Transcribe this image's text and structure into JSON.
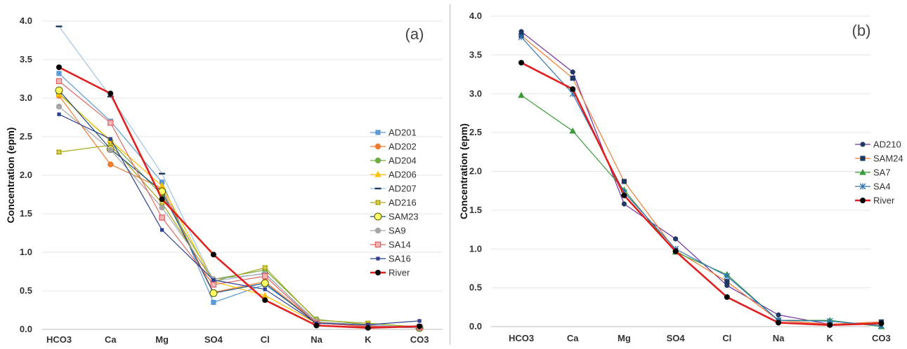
{
  "chart_data": [
    {
      "type": "line",
      "panel_label": "(a)",
      "ylabel": "Concentration (epm)",
      "categories": [
        "HCO3",
        "Ca",
        "Mg",
        "SO4",
        "Cl",
        "Na",
        "K",
        "CO3"
      ],
      "ylim": [
        0,
        4
      ],
      "yticks": [
        "0.0",
        "0.5",
        "1.0",
        "1.5",
        "2.0",
        "2.5",
        "3.0",
        "3.5",
        "4.0"
      ],
      "grid": true,
      "legend": "right",
      "series": [
        {
          "name": "AD201",
          "color": "#5b9bd5",
          "marker": "square",
          "values": [
            3.32,
            2.7,
            1.91,
            0.35,
            0.58,
            0.1,
            0.05,
            0.04
          ]
        },
        {
          "name": "AD202",
          "color": "#ed7d31",
          "marker": "circle",
          "values": [
            3.03,
            2.14,
            1.83,
            0.48,
            0.62,
            0.09,
            0.03,
            0.03
          ]
        },
        {
          "name": "AD204",
          "color": "#70ad47",
          "marker": "circle",
          "values": [
            3.06,
            2.44,
            1.74,
            0.65,
            0.77,
            0.13,
            0.06,
            0.02
          ]
        },
        {
          "name": "AD206",
          "color": "#ffc000",
          "marker": "triangle",
          "values": [
            3.05,
            2.45,
            1.86,
            0.62,
            0.44,
            0.08,
            0.06,
            0.03
          ]
        },
        {
          "name": "AD207",
          "color": "#9dc3e6",
          "marker": "dash",
          "values": [
            3.93,
            3.02,
            2.02,
            0.62,
            0.73,
            0.08,
            0.06,
            0.03
          ]
        },
        {
          "name": "AD216",
          "color": "#a5a515",
          "marker": "plus-square",
          "values": [
            2.3,
            2.39,
            1.64,
            0.62,
            0.8,
            0.12,
            0.08,
            0.03
          ]
        },
        {
          "name": "SAM23",
          "color": "#1f4e79",
          "marker": "circle-yellow",
          "values": [
            3.1,
            2.34,
            1.79,
            0.47,
            0.6,
            0.08,
            0.04,
            0.02
          ]
        },
        {
          "name": "SA9",
          "color": "#a5a5a5",
          "marker": "circle",
          "values": [
            2.89,
            2.33,
            1.58,
            0.65,
            0.72,
            0.1,
            0.05,
            0.02
          ]
        },
        {
          "name": "SA14",
          "color": "#e06666",
          "marker": "square-open",
          "values": [
            3.22,
            2.68,
            1.45,
            0.58,
            0.69,
            0.08,
            0.04,
            0.03
          ]
        },
        {
          "name": "SA16",
          "color": "#2f3f8f",
          "marker": "square-small",
          "values": [
            2.79,
            2.47,
            1.29,
            0.64,
            0.52,
            0.08,
            0.06,
            0.11
          ]
        },
        {
          "name": "River",
          "color": "#e02020",
          "marker": "dot-black",
          "thick": true,
          "values": [
            3.4,
            3.06,
            1.69,
            0.97,
            0.38,
            0.05,
            0.02,
            0.04
          ]
        }
      ]
    },
    {
      "type": "line",
      "panel_label": "(b)",
      "ylabel": "Concentration (epm)",
      "categories": [
        "HCO3",
        "Ca",
        "Mg",
        "SO4",
        "Cl",
        "Na",
        "K",
        "CO3"
      ],
      "ylim": [
        0,
        4
      ],
      "yticks": [
        "0.0",
        "0.5",
        "1.0",
        "1.5",
        "2.0",
        "2.5",
        "3.0",
        "3.5",
        "4.0"
      ],
      "grid": true,
      "legend": "right",
      "series": [
        {
          "name": "AD210",
          "color": "#7030a0",
          "marker": "circle-navy",
          "values": [
            3.8,
            3.28,
            1.58,
            1.13,
            0.53,
            0.15,
            0.03,
            0.06
          ]
        },
        {
          "name": "SAM24",
          "color": "#ed7d31",
          "marker": "square-navy",
          "values": [
            3.75,
            3.2,
            1.87,
            0.98,
            0.58,
            0.08,
            0.03,
            0.06
          ]
        },
        {
          "name": "SA7",
          "color": "#3a9a3a",
          "marker": "triangle",
          "values": [
            2.98,
            2.52,
            1.76,
            0.96,
            0.67,
            0.08,
            0.08,
            0.0
          ]
        },
        {
          "name": "SA4",
          "color": "#2e75b6",
          "marker": "star",
          "values": [
            3.73,
            3.0,
            1.73,
            1.0,
            0.65,
            0.08,
            0.07,
            0.01
          ]
        },
        {
          "name": "River",
          "color": "#e02020",
          "marker": "dot-black",
          "thick": true,
          "values": [
            3.4,
            3.06,
            1.69,
            0.97,
            0.38,
            0.05,
            0.02,
            0.04
          ]
        }
      ]
    }
  ]
}
